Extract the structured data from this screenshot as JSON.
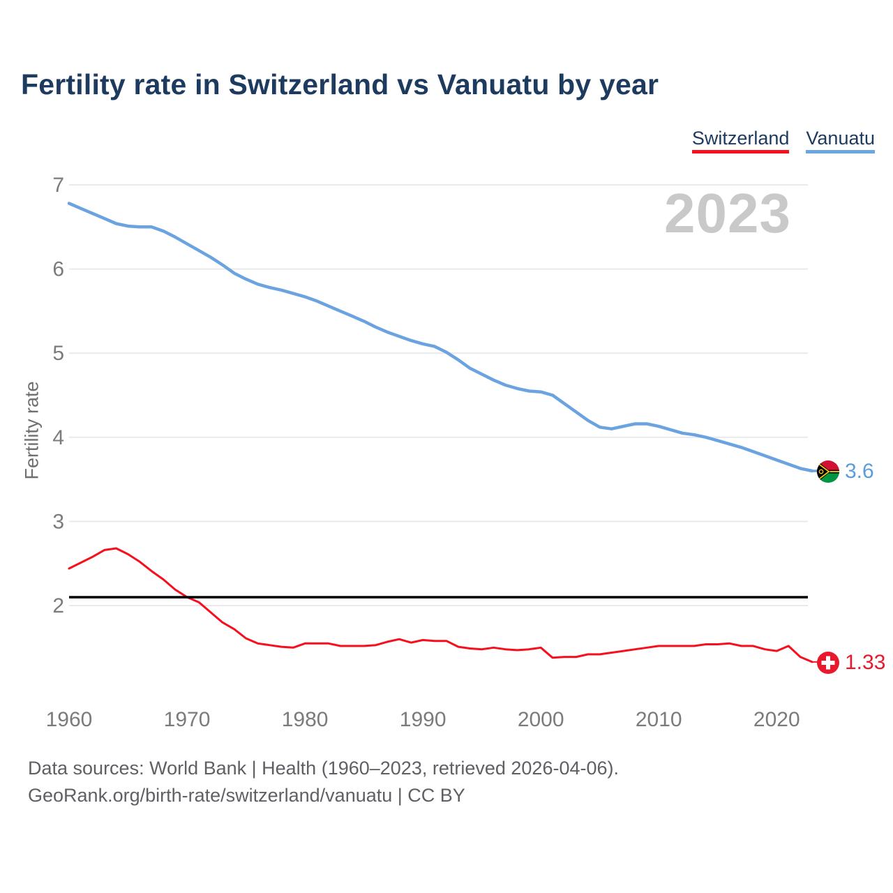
{
  "title": "Fertility rate in Switzerland vs Vanuatu by year",
  "legend": [
    {
      "label": "Switzerland",
      "color": "#f6101e"
    },
    {
      "label": "Vanuatu",
      "color": "#6aa7e0"
    }
  ],
  "watermark": "2023",
  "y_axis": {
    "label": "Fertility rate"
  },
  "reference_line": {
    "value": 2.1,
    "color": "#000000"
  },
  "end_labels": {
    "vanuatu": {
      "value": "3.6",
      "color": "#5b9cdb",
      "flag": "vanuatu-flag-icon"
    },
    "switzerland": {
      "value": "1.33",
      "color": "#e8192c",
      "flag": "switzerland-flag-icon"
    }
  },
  "footer": {
    "line1": "Data sources: World Bank | Health (1960–2023, retrieved 2026-04-06).",
    "line2": "GeoRank.org/birth-rate/switzerland/vanuatu | CC BY"
  },
  "chart_data": {
    "type": "line",
    "title": "Fertility rate in Switzerland vs Vanuatu by year",
    "xlabel": "",
    "ylabel": "Fertility rate",
    "x_ticks": [
      1960,
      1970,
      1980,
      1990,
      2000,
      2010,
      2020
    ],
    "y_ticks": [
      7,
      6,
      5,
      4,
      3,
      2
    ],
    "xlim": [
      1960,
      2023
    ],
    "ylim": [
      1.2,
      7.05
    ],
    "grid": "horizontal",
    "legend_position": "top-right",
    "reference_line_value": 2.1,
    "x": [
      1960,
      1961,
      1962,
      1963,
      1964,
      1965,
      1966,
      1967,
      1968,
      1969,
      1970,
      1971,
      1972,
      1973,
      1974,
      1975,
      1976,
      1977,
      1978,
      1979,
      1980,
      1981,
      1982,
      1983,
      1984,
      1985,
      1986,
      1987,
      1988,
      1989,
      1990,
      1991,
      1992,
      1993,
      1994,
      1995,
      1996,
      1997,
      1998,
      1999,
      2000,
      2001,
      2002,
      2003,
      2004,
      2005,
      2006,
      2007,
      2008,
      2009,
      2010,
      2011,
      2012,
      2013,
      2014,
      2015,
      2016,
      2017,
      2018,
      2019,
      2020,
      2021,
      2022,
      2023
    ],
    "series": [
      {
        "name": "Vanuatu",
        "color": "#6aa3e0",
        "stroke_width": 4.5,
        "last_label": "3.6",
        "values": [
          6.78,
          6.72,
          6.66,
          6.6,
          6.54,
          6.51,
          6.5,
          6.5,
          6.45,
          6.38,
          6.3,
          6.22,
          6.14,
          6.05,
          5.95,
          5.88,
          5.82,
          5.78,
          5.75,
          5.71,
          5.67,
          5.62,
          5.56,
          5.5,
          5.44,
          5.38,
          5.31,
          5.25,
          5.2,
          5.15,
          5.11,
          5.08,
          5.01,
          4.92,
          4.82,
          4.75,
          4.68,
          4.62,
          4.58,
          4.55,
          4.54,
          4.5,
          4.4,
          4.3,
          4.2,
          4.12,
          4.1,
          4.13,
          4.16,
          4.16,
          4.13,
          4.09,
          4.05,
          4.03,
          4.0,
          3.96,
          3.92,
          3.88,
          3.83,
          3.78,
          3.73,
          3.68,
          3.63,
          3.6
        ]
      },
      {
        "name": "Switzerland",
        "color": "#f6101e",
        "stroke_width": 3,
        "last_label": "1.33",
        "values": [
          2.44,
          2.51,
          2.58,
          2.66,
          2.68,
          2.61,
          2.52,
          2.41,
          2.31,
          2.19,
          2.1,
          2.04,
          1.92,
          1.8,
          1.72,
          1.61,
          1.55,
          1.53,
          1.51,
          1.5,
          1.55,
          1.55,
          1.55,
          1.52,
          1.52,
          1.52,
          1.53,
          1.57,
          1.6,
          1.56,
          1.59,
          1.58,
          1.58,
          1.51,
          1.49,
          1.48,
          1.5,
          1.48,
          1.47,
          1.48,
          1.5,
          1.38,
          1.39,
          1.39,
          1.42,
          1.42,
          1.44,
          1.46,
          1.48,
          1.5,
          1.52,
          1.52,
          1.52,
          1.52,
          1.54,
          1.54,
          1.55,
          1.52,
          1.52,
          1.48,
          1.46,
          1.52,
          1.39,
          1.33
        ]
      }
    ]
  }
}
